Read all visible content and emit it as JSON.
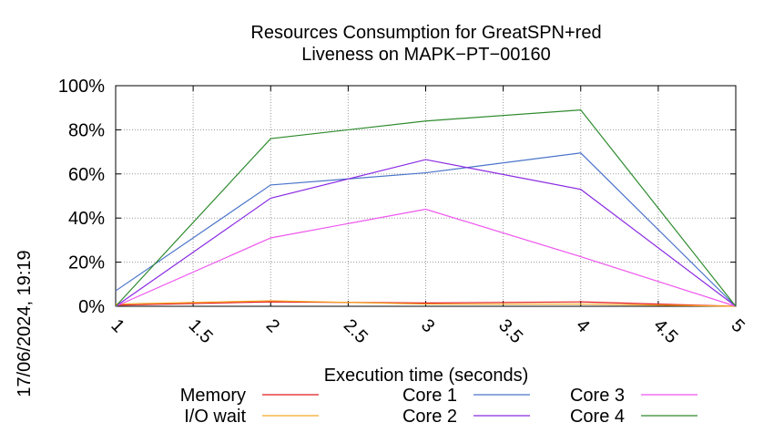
{
  "chart_data": {
    "type": "line",
    "title_line1": "Resources Consumption for GreatSPN+red",
    "title_line2": "Liveness on MAPK−PT−00160",
    "xlabel": "Execution time (seconds)",
    "ylabel": "",
    "timestamp": "17/06/2024, 19:19",
    "xlim": [
      1,
      5
    ],
    "ylim": [
      0,
      100
    ],
    "x_ticks": [
      "1",
      "1.5",
      "2",
      "2.5",
      "3",
      "3.5",
      "4",
      "4.5",
      "5"
    ],
    "y_ticks": [
      "0%",
      "20%",
      "40%",
      "60%",
      "80%",
      "100%"
    ],
    "grid": true,
    "legend_position": "bottom",
    "series": [
      {
        "name": "Memory",
        "color": "#e41a1c",
        "x": [
          1,
          2,
          3,
          4,
          5
        ],
        "y": [
          0.5,
          2,
          1.5,
          2,
          0
        ]
      },
      {
        "name": "I/O wait",
        "color": "#f5a623",
        "x": [
          1,
          2,
          3,
          4,
          5
        ],
        "y": [
          1,
          2.5,
          1,
          1,
          0
        ]
      },
      {
        "name": "Core 1",
        "color": "#4a74c9",
        "x": [
          1,
          2,
          3,
          4,
          5
        ],
        "y": [
          7,
          55,
          60.5,
          69.5,
          0
        ]
      },
      {
        "name": "Core 2",
        "color": "#8a2be2",
        "x": [
          1,
          2,
          3,
          4,
          5
        ],
        "y": [
          0,
          49,
          66.5,
          53,
          0
        ]
      },
      {
        "name": "Core 3",
        "color": "#ee55ee",
        "x": [
          1,
          2,
          3,
          4,
          5
        ],
        "y": [
          0,
          31,
          44,
          22.5,
          0
        ]
      },
      {
        "name": "Core 4",
        "color": "#2e8b2e",
        "x": [
          1,
          2,
          3,
          4,
          5
        ],
        "y": [
          0,
          76,
          84,
          89,
          0
        ]
      }
    ]
  }
}
